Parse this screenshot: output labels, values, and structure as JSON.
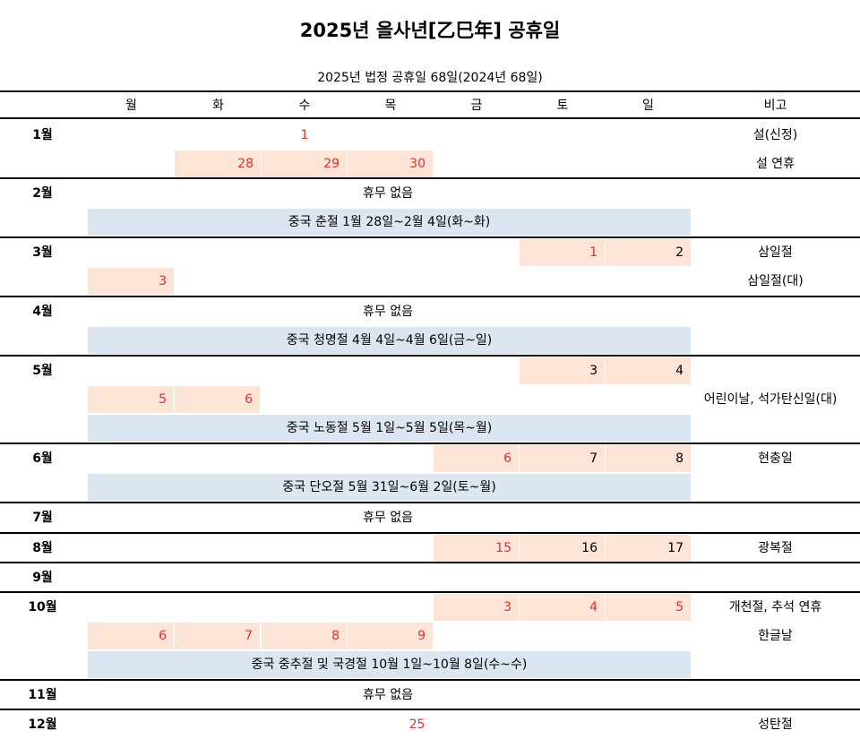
{
  "title": "2025년 을사년[乙巳年] 공휴일",
  "subtitle": "2025년 법정 공휴일 68일(2024년 68일)",
  "days": [
    "월",
    "화",
    "수",
    "목",
    "금",
    "토",
    "일"
  ],
  "note_header": "비고",
  "months": [
    "1월",
    "2월",
    "3월",
    "4월",
    "5월",
    "6월",
    "7월",
    "8월",
    "9월",
    "10월",
    "11월",
    "12월"
  ],
  "rows": {
    "jan1_wed": "1",
    "jan_note1": "설(신정)",
    "jan2_tue": "28",
    "jan2_wed": "29",
    "jan2_thu": "30",
    "jan_note2": "설 연휴",
    "feb_none": "휴무 없음",
    "feb_china": "중국 춘절 1월 28일~2월 4일(화~화)",
    "mar_sat": "1",
    "mar_sun": "2",
    "mar_note1": "삼일절",
    "mar2_mon": "3",
    "mar_note2": "삼일절(대)",
    "apr_none": "휴무 없음",
    "apr_china": "중국 청명절 4월 4일~4월 6일(금~일)",
    "may_sat": "3",
    "may_sun": "4",
    "may2_mon": "5",
    "may2_tue": "6",
    "may_note2": "어린이날, 석가탄신일(대)",
    "may_china": "중국 노동절 5월 1일~5월 5일(목~월)",
    "jun_fri": "6",
    "jun_sat": "7",
    "jun_sun": "8",
    "jun_note": "현충일",
    "jun_china": "중국 단오절 5월 31일~6월 2일(토~월)",
    "jul_none": "휴무 없음",
    "aug_fri": "15",
    "aug_sat": "16",
    "aug_sun": "17",
    "aug_note": "광복절",
    "oct_fri": "3",
    "oct_sat": "4",
    "oct_sun": "5",
    "oct_note1": "개천절, 추석 연휴",
    "oct2_mon": "6",
    "oct2_tue": "7",
    "oct2_wed": "8",
    "oct2_thu": "9",
    "oct_note2": "한글날",
    "oct_china": "중국 중추절 및 국경절 10월 1일~10월 8일(수~수)",
    "nov_none": "휴무 없음",
    "dec_thu": "25",
    "dec_note": "성탄절"
  },
  "colors": {
    "holiday_text": "#e03030",
    "holiday_bg": "#fce4d6",
    "china_bg": "#dce6f1"
  }
}
